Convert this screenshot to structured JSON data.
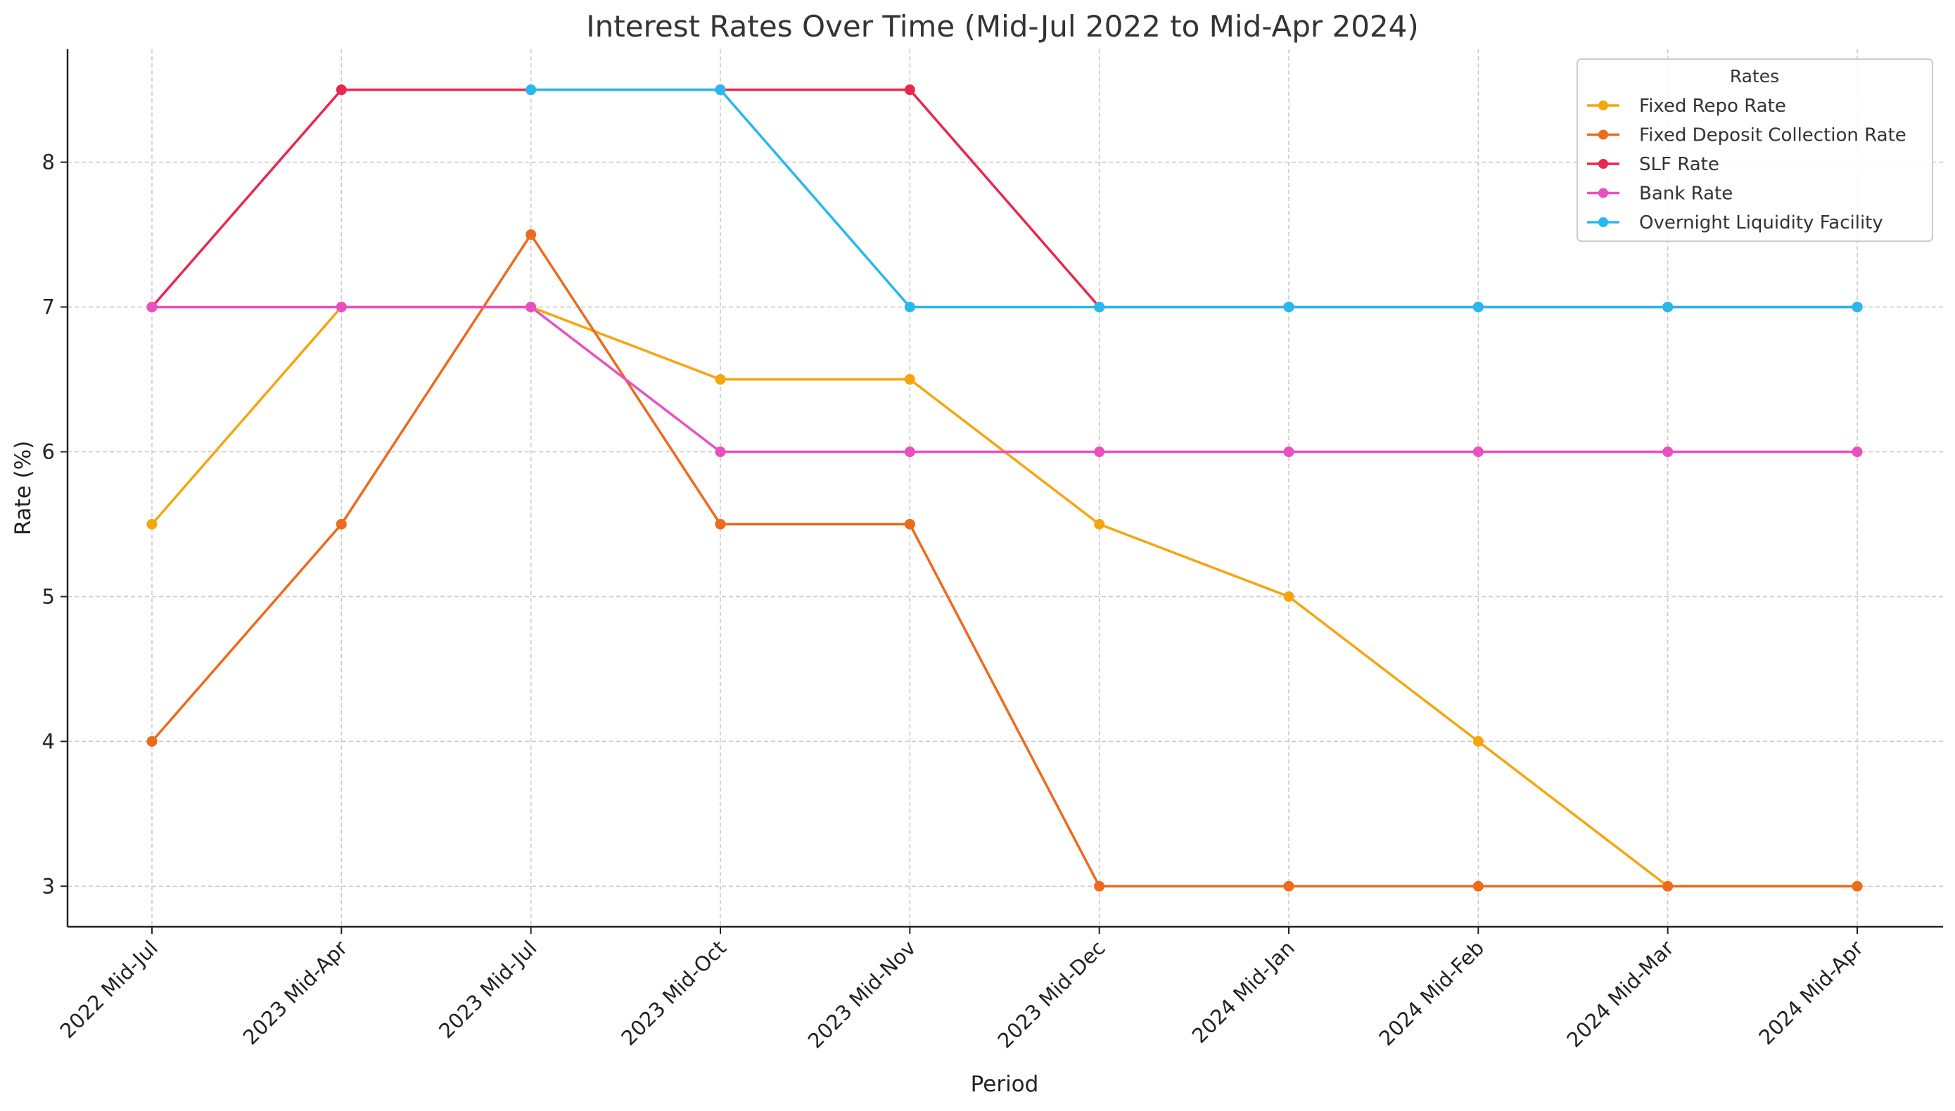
{
  "chart_data": {
    "type": "line",
    "title": "Interest Rates Over Time (Mid-Jul 2022 to Mid-Apr 2024)",
    "xlabel": "Period",
    "ylabel": "Rate (%)",
    "categories": [
      "2022 Mid-Jul",
      "2023 Mid-Apr",
      "2023 Mid-Jul",
      "2023 Mid-Oct",
      "2023 Mid-Nov",
      "2023 Mid-Dec",
      "2024 Mid-Jan",
      "2024 Mid-Feb",
      "2024 Mid-Mar",
      "2024 Mid-Apr"
    ],
    "ylim": [
      2.72,
      8.78
    ],
    "yticks": [
      3,
      4,
      5,
      6,
      7,
      8
    ],
    "grid": true,
    "legend": {
      "title": "Rates",
      "placement": "top-right"
    },
    "series": [
      {
        "name": "Fixed Repo Rate",
        "color": "#f5a60e",
        "values": [
          5.5,
          7,
          7,
          6.5,
          6.5,
          5.5,
          5,
          4,
          3,
          3
        ]
      },
      {
        "name": "Fixed Deposit Collection Rate",
        "color": "#ee6a1c",
        "values": [
          4,
          5.5,
          7.5,
          5.5,
          5.5,
          3,
          3,
          3,
          3,
          3
        ]
      },
      {
        "name": "SLF Rate",
        "color": "#e9284e",
        "values": [
          7,
          8.5,
          8.5,
          8.5,
          8.5,
          7,
          7,
          7,
          7,
          7
        ]
      },
      {
        "name": "Bank Rate",
        "color": "#ea4fc2",
        "values": [
          7,
          7,
          7,
          6,
          6,
          6,
          6,
          6,
          6,
          6
        ]
      },
      {
        "name": "Overnight Liquidity Facility",
        "color": "#27b8ef",
        "values": [
          null,
          null,
          8.5,
          8.5,
          7,
          7,
          7,
          7,
          7,
          7
        ]
      }
    ]
  }
}
